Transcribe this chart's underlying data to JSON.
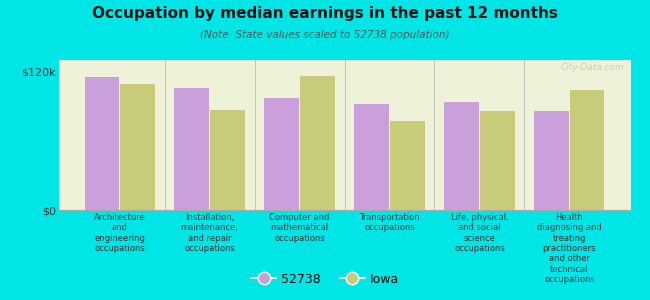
{
  "title": "Occupation by median earnings in the past 12 months",
  "subtitle": "(Note: State values scaled to 52738 population)",
  "background_color": "#00e5e5",
  "plot_bg_color": "#eef2d8",
  "bar_color_city": "#c9a0dc",
  "bar_color_state": "#c8cc7a",
  "categories": [
    "Architecture\nand\nengineering\noccupations",
    "Installation,\nmaintenance,\nand repair\noccupations",
    "Computer and\nmathematical\noccupations",
    "Transportation\noccupations",
    "Life, physical,\nand social\nscience\noccupations",
    "Health\ndiagnosing and\ntreating\npractitioners\nand other\ntechnical\noccupations"
  ],
  "city_values": [
    115000,
    106000,
    97000,
    92000,
    94000,
    86000
  ],
  "state_values": [
    109000,
    87000,
    116000,
    77000,
    86000,
    104000
  ],
  "ylim": [
    0,
    130000
  ],
  "yticks": [
    0,
    120000
  ],
  "ytick_labels": [
    "$0",
    "$120k"
  ],
  "legend_city": "52738",
  "legend_state": "Iowa",
  "watermark": "City-Data.com"
}
